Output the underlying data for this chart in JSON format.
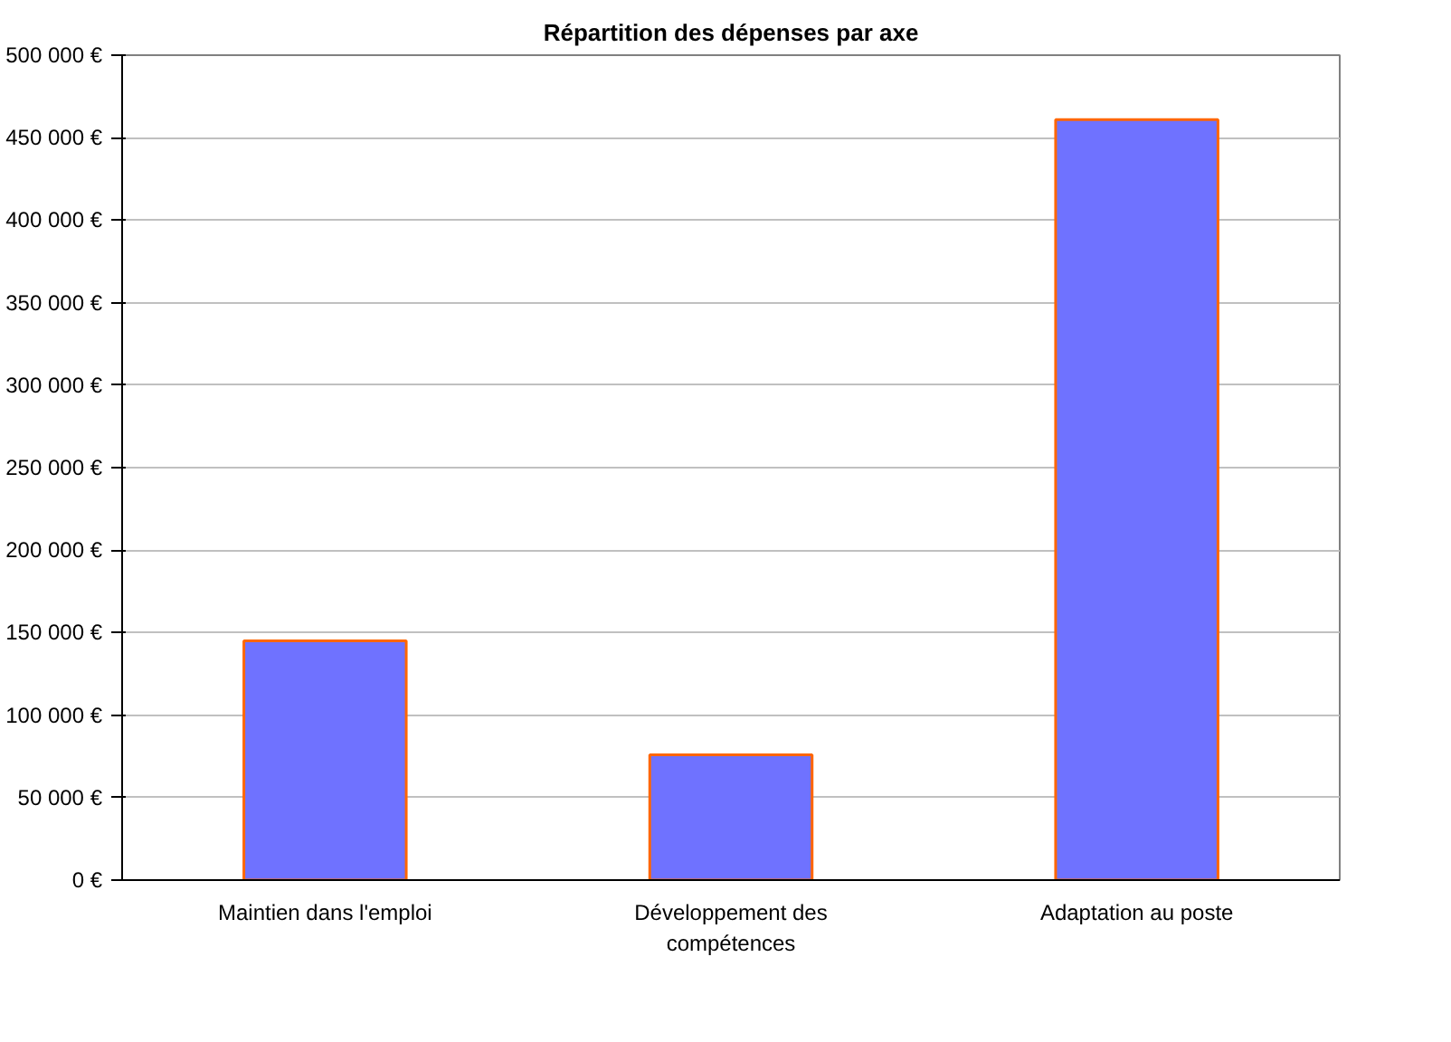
{
  "chart_data": {
    "type": "bar",
    "title": "Répartition des dépenses par axe",
    "categories": [
      "Maintien dans l'emploi",
      "Développement des compétences",
      "Adaptation au poste"
    ],
    "values": [
      145000,
      76000,
      461000
    ],
    "color": "#6f72ff",
    "ylim": [
      0,
      500000
    ],
    "yticks": [
      {
        "value": 0,
        "label": "0 €"
      },
      {
        "value": 50000,
        "label": "50 000 €"
      },
      {
        "value": 100000,
        "label": "100 000 €"
      },
      {
        "value": 150000,
        "label": "150 000 €"
      },
      {
        "value": 200000,
        "label": "200 000 €"
      },
      {
        "value": 250000,
        "label": "250 000 €"
      },
      {
        "value": 300000,
        "label": "300 000 €"
      },
      {
        "value": 350000,
        "label": "350 000 €"
      },
      {
        "value": 400000,
        "label": "400 000 €"
      },
      {
        "value": 450000,
        "label": "450 000 €"
      },
      {
        "value": 500000,
        "label": "500 000 €"
      }
    ],
    "grid": "y"
  }
}
